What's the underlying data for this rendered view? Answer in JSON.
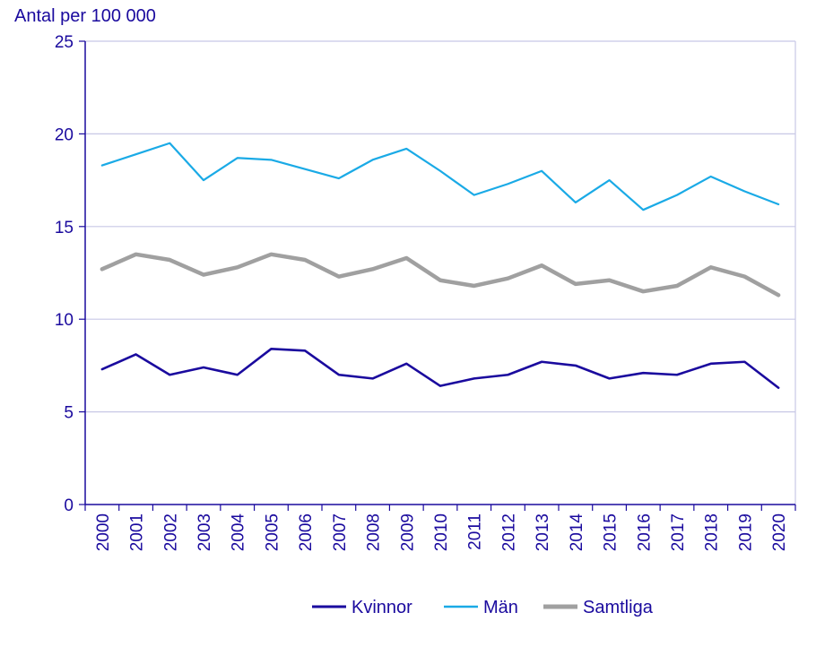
{
  "chart_data": {
    "type": "line",
    "title": "",
    "xlabel": "",
    "ylabel": "Antal per 100 000",
    "ylim": [
      0,
      25
    ],
    "yticks": [
      0,
      5,
      10,
      15,
      20,
      25
    ],
    "grid": true,
    "legend_placement": "bottom-center",
    "categories": [
      "2000",
      "2001",
      "2002",
      "2003",
      "2004",
      "2005",
      "2006",
      "2007",
      "2008",
      "2009",
      "2010",
      "2011",
      "2012",
      "2013",
      "2014",
      "2015",
      "2016",
      "2017",
      "2018",
      "2019",
      "2020"
    ],
    "series": [
      {
        "name": "Kvinnor",
        "color": "#1a0a9e",
        "values": [
          7.3,
          8.1,
          7.0,
          7.4,
          7.0,
          8.4,
          8.3,
          7.0,
          6.8,
          7.6,
          6.4,
          6.8,
          7.0,
          7.7,
          7.5,
          6.8,
          7.1,
          7.0,
          7.6,
          7.7,
          6.3
        ]
      },
      {
        "name": "Män",
        "color": "#1aaae6",
        "values": [
          18.3,
          18.9,
          19.5,
          17.5,
          18.7,
          18.6,
          18.1,
          17.6,
          18.6,
          19.2,
          18.0,
          16.7,
          17.3,
          18.0,
          16.3,
          17.5,
          15.9,
          16.7,
          17.7,
          16.9,
          16.2
        ]
      },
      {
        "name": "Samtliga",
        "color": "#a0a0a0",
        "values": [
          12.7,
          13.5,
          13.2,
          12.4,
          12.8,
          13.5,
          13.2,
          12.3,
          12.7,
          13.3,
          12.1,
          11.8,
          12.2,
          12.9,
          11.9,
          12.1,
          11.5,
          11.8,
          12.8,
          12.3,
          11.3
        ]
      }
    ],
    "axis_color": "#1a0a9e",
    "grid_color": "#c8c8e6"
  }
}
